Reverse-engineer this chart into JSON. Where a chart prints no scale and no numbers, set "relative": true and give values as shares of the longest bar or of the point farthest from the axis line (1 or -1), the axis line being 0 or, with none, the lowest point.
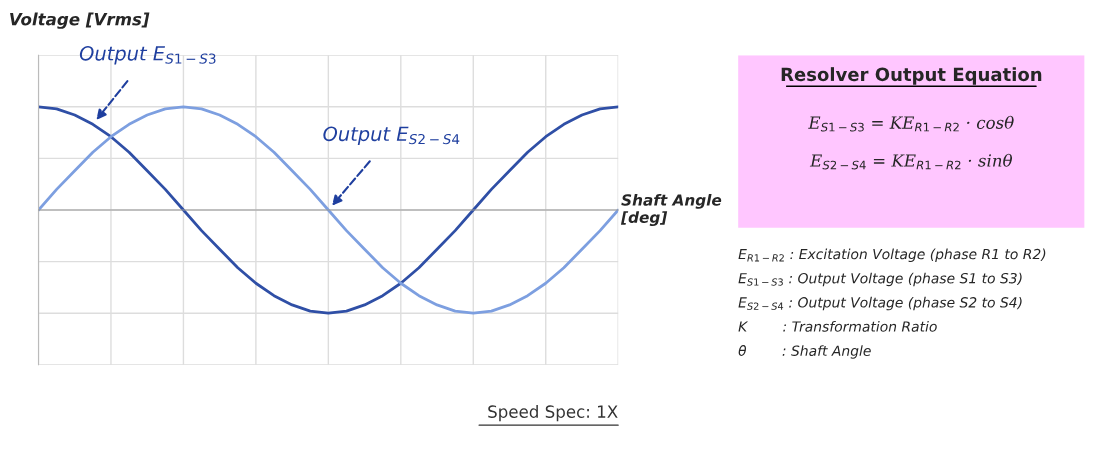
{
  "chart_data": [
    {
      "type": "line",
      "relative": true,
      "ylabel": "Voltage [Vrms]",
      "xlabel": "Shaft Angle [deg]",
      "grid": true,
      "line_style": "solid",
      "categories": [
        null,
        null,
        null,
        null,
        null,
        null,
        null,
        null,
        null,
        null,
        null,
        null,
        null,
        null,
        null,
        null,
        null,
        null,
        null,
        null,
        null,
        null,
        null,
        null,
        null,
        null,
        null,
        null,
        null,
        null,
        null,
        null,
        null
      ],
      "series": [
        {
          "color": "#2f4fa6",
          "values": [
            1,
            0.98,
            0.92,
            0.83,
            0.71,
            0.56,
            0.38,
            0.2,
            0,
            -0.2,
            -0.38,
            -0.56,
            -0.71,
            -0.83,
            -0.92,
            -0.98,
            -1,
            -0.98,
            -0.92,
            -0.83,
            -0.71,
            -0.56,
            -0.38,
            -0.2,
            0,
            0.2,
            0.38,
            0.56,
            0.71,
            0.83,
            0.92,
            0.98,
            1
          ]
        },
        {
          "color": "#7d9fe0",
          "values": [
            0,
            0.2,
            0.38,
            0.56,
            0.71,
            0.83,
            0.92,
            0.98,
            1,
            0.98,
            0.92,
            0.83,
            0.71,
            0.56,
            0.38,
            0.2,
            0,
            -0.2,
            -0.38,
            -0.56,
            -0.71,
            -0.83,
            -0.92,
            -0.98,
            -1,
            -0.98,
            -0.92,
            -0.83,
            -0.71,
            -0.56,
            -0.38,
            -0.2,
            0
          ]
        }
      ],
      "annotations": [
        "Output E$_{S1−S3}$",
        "Output E$_{S2−S4}$",
        "Speed Spec: 1X"
      ]
    },
    {
      "type": "other",
      "title": "Resolver Output Equation",
      "color": "#ffc6ff",
      "annotations": [
        "E$_{S1−S3}$ = KE$_{R1−R2}$ · cosθ",
        "E$_{S2−S4}$ = KE$_{R1−R2}$ · sinθ",
        "E$_{R1−R2}$ : Excitation Voltage (phase R1 to R2)",
        "E$_{S1−S3}$ : Output Voltage (phase S1 to S3)",
        "E$_{S2−S4}$ : Output Voltage (phase S2 to S4)",
        "K        : Transformation Ratio",
        "θ        : Shaft Angle"
      ]
    }
  ]
}
